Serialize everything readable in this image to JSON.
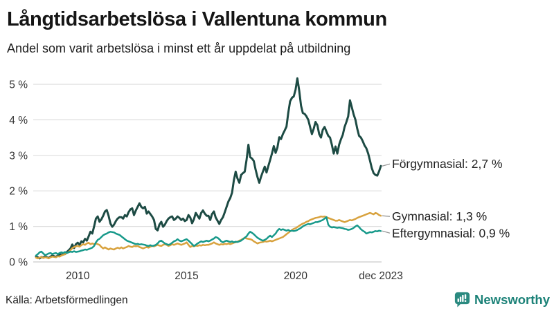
{
  "header": {
    "title": "Långtidsarbetslösa i Vallentuna kommun",
    "subtitle": "Andel som varit arbetslösa i minst ett år uppdelat på utbildning"
  },
  "footer": {
    "source": "Källa: Arbetsförmedlingen",
    "brand": "Newsworthy"
  },
  "colors": {
    "forgymnasial": "#1d4b44",
    "gymnasial": "#d8a23e",
    "eftergymnasial": "#17998a",
    "gridline": "#dddddd",
    "baseline": "#c9c9c9",
    "axis_text": "#333333",
    "label_text": "#222222",
    "leader": "#999999",
    "brand_teal": "#1c8278"
  },
  "chart_data": {
    "type": "line",
    "title": "Långtidsarbetslösa i Vallentuna kommun",
    "subtitle": "Andel som varit arbetslösa i minst ett år uppdelat på utbildning",
    "x_start": "2008-02",
    "x_end": "2023-12",
    "frequency": "monthly",
    "ylim": [
      0,
      5.4
    ],
    "grid": "horizontal",
    "legend_position": "right-end-labels",
    "yticks": [
      {
        "value": 5,
        "label": "5 %"
      },
      {
        "value": 4,
        "label": "4 %"
      },
      {
        "value": 3,
        "label": "3 %"
      },
      {
        "value": 2,
        "label": "2 %"
      },
      {
        "value": 1,
        "label": "1 %"
      },
      {
        "value": 0,
        "label": "0 %"
      }
    ],
    "xticks": [
      {
        "index": 23,
        "label": "2010"
      },
      {
        "index": 83,
        "label": "2015"
      },
      {
        "index": 143,
        "label": "2020"
      },
      {
        "index": 190,
        "label": "dec 2023"
      }
    ],
    "series": [
      {
        "name": "Förgymnasial",
        "slug": "forgymnasial",
        "end_label": "Förgymnasial: 2,7 %",
        "end_value_text": "2,7 %",
        "color": "#1d4b44",
        "stroke_width": 3,
        "values": [
          0.15,
          0.13,
          0.1,
          0.14,
          0.12,
          0.16,
          0.13,
          0.11,
          0.15,
          0.18,
          0.16,
          0.14,
          0.18,
          0.22,
          0.19,
          0.25,
          0.22,
          0.28,
          0.33,
          0.38,
          0.49,
          0.39,
          0.5,
          0.54,
          0.48,
          0.58,
          0.55,
          0.65,
          0.6,
          0.72,
          0.85,
          0.8,
          1.0,
          1.22,
          1.28,
          1.13,
          1.2,
          1.3,
          1.42,
          1.46,
          1.3,
          1.08,
          0.99,
          1.05,
          1.15,
          1.22,
          1.26,
          1.26,
          1.22,
          1.32,
          1.28,
          1.4,
          1.48,
          1.51,
          1.32,
          1.45,
          1.55,
          1.65,
          1.55,
          1.51,
          1.55,
          1.36,
          1.42,
          1.35,
          1.28,
          1.18,
          0.93,
          0.89,
          1.05,
          1.13,
          0.99,
          1.05,
          1.15,
          1.22,
          1.26,
          1.28,
          1.18,
          1.22,
          1.28,
          1.24,
          1.18,
          1.22,
          1.15,
          1.18,
          1.32,
          1.25,
          1.09,
          1.2,
          1.38,
          1.3,
          1.22,
          1.38,
          1.45,
          1.36,
          1.3,
          1.3,
          1.18,
          1.35,
          1.42,
          1.25,
          1.16,
          1.07,
          1.18,
          1.26,
          1.4,
          1.55,
          1.7,
          1.8,
          1.95,
          2.3,
          2.54,
          2.35,
          2.23,
          2.45,
          2.5,
          2.54,
          2.87,
          3.3,
          2.95,
          2.91,
          2.84,
          2.6,
          2.39,
          2.23,
          2.4,
          2.54,
          2.68,
          2.52,
          2.7,
          2.87,
          3.05,
          3.26,
          3.07,
          3.22,
          3.51,
          3.46,
          3.6,
          3.7,
          3.81,
          4.2,
          4.52,
          4.62,
          4.66,
          4.85,
          5.17,
          4.82,
          4.4,
          4.19,
          4.17,
          4.1,
          4.0,
          3.8,
          3.6,
          3.75,
          3.94,
          3.85,
          3.6,
          3.5,
          3.72,
          3.8,
          3.67,
          3.55,
          3.5,
          3.3,
          3.05,
          3.25,
          3.05,
          3.3,
          3.45,
          3.58,
          3.8,
          3.94,
          4.1,
          4.55,
          4.35,
          4.15,
          4.0,
          3.75,
          3.55,
          3.5,
          3.4,
          3.28,
          3.2,
          3.05,
          2.85,
          2.64,
          2.5,
          2.45,
          2.43,
          2.55,
          2.7
        ]
      },
      {
        "name": "Gymnasial",
        "slug": "gymnasial",
        "end_label": "Gymnasial: 1,3 %",
        "end_value_text": "1,3 %",
        "color": "#d8a23e",
        "stroke_width": 2.5,
        "values": [
          0.12,
          0.1,
          0.12,
          0.14,
          0.11,
          0.13,
          0.12,
          0.1,
          0.13,
          0.15,
          0.14,
          0.13,
          0.16,
          0.15,
          0.18,
          0.2,
          0.22,
          0.25,
          0.28,
          0.33,
          0.39,
          0.42,
          0.44,
          0.45,
          0.43,
          0.47,
          0.5,
          0.48,
          0.52,
          0.54,
          0.5,
          0.52,
          0.5,
          0.52,
          0.5,
          0.48,
          0.42,
          0.38,
          0.41,
          0.38,
          0.35,
          0.38,
          0.36,
          0.35,
          0.38,
          0.4,
          0.38,
          0.41,
          0.38,
          0.4,
          0.42,
          0.45,
          0.43,
          0.42,
          0.45,
          0.44,
          0.45,
          0.42,
          0.4,
          0.38,
          0.4,
          0.42,
          0.4,
          0.43,
          0.45,
          0.44,
          0.46,
          0.48,
          0.46,
          0.45,
          0.48,
          0.5,
          0.48,
          0.45,
          0.47,
          0.5,
          0.48,
          0.5,
          0.52,
          0.5,
          0.48,
          0.5,
          0.52,
          0.55,
          0.48,
          0.42,
          0.45,
          0.44,
          0.46,
          0.45,
          0.47,
          0.46,
          0.48,
          0.47,
          0.48,
          0.48,
          0.5,
          0.52,
          0.55,
          0.52,
          0.5,
          0.48,
          0.5,
          0.49,
          0.51,
          0.5,
          0.52,
          0.5,
          0.52,
          0.54,
          0.55,
          0.57,
          0.6,
          0.62,
          0.65,
          0.68,
          0.66,
          0.65,
          0.64,
          0.62,
          0.58,
          0.55,
          0.52,
          0.54,
          0.55,
          0.56,
          0.58,
          0.57,
          0.58,
          0.6,
          0.58,
          0.6,
          0.62,
          0.64,
          0.66,
          0.68,
          0.7,
          0.74,
          0.78,
          0.82,
          0.86,
          0.9,
          0.93,
          0.95,
          0.98,
          1.02,
          1.05,
          1.08,
          1.1,
          1.13,
          1.15,
          1.18,
          1.2,
          1.22,
          1.24,
          1.25,
          1.26,
          1.28,
          1.27,
          1.28,
          1.26,
          1.24,
          1.22,
          1.2,
          1.18,
          1.16,
          1.16,
          1.18,
          1.16,
          1.14,
          1.12,
          1.14,
          1.16,
          1.18,
          1.17,
          1.19,
          1.21,
          1.24,
          1.26,
          1.28,
          1.3,
          1.32,
          1.34,
          1.36,
          1.38,
          1.36,
          1.34,
          1.38,
          1.36,
          1.32,
          1.3
        ]
      },
      {
        "name": "Eftergymnasial",
        "slug": "eftergymnasial",
        "end_label": "Eftergymnasial: 0,9 %",
        "end_value_text": "0,9 %",
        "color": "#17998a",
        "stroke_width": 2.5,
        "values": [
          0.18,
          0.22,
          0.27,
          0.29,
          0.24,
          0.19,
          0.21,
          0.24,
          0.25,
          0.22,
          0.24,
          0.25,
          0.22,
          0.25,
          0.27,
          0.25,
          0.28,
          0.25,
          0.27,
          0.29,
          0.28,
          0.3,
          0.28,
          0.29,
          0.3,
          0.32,
          0.33,
          0.35,
          0.34,
          0.36,
          0.38,
          0.4,
          0.45,
          0.55,
          0.62,
          0.65,
          0.7,
          0.75,
          0.78,
          0.8,
          0.83,
          0.85,
          0.84,
          0.83,
          0.8,
          0.78,
          0.76,
          0.72,
          0.68,
          0.64,
          0.6,
          0.58,
          0.56,
          0.54,
          0.52,
          0.5,
          0.51,
          0.49,
          0.5,
          0.49,
          0.48,
          0.46,
          0.45,
          0.47,
          0.45,
          0.46,
          0.48,
          0.52,
          0.58,
          0.6,
          0.56,
          0.52,
          0.5,
          0.48,
          0.5,
          0.54,
          0.58,
          0.6,
          0.64,
          0.6,
          0.58,
          0.6,
          0.62,
          0.64,
          0.6,
          0.55,
          0.5,
          0.45,
          0.48,
          0.52,
          0.55,
          0.58,
          0.56,
          0.58,
          0.6,
          0.58,
          0.6,
          0.63,
          0.66,
          0.7,
          0.68,
          0.64,
          0.58,
          0.55,
          0.58,
          0.6,
          0.58,
          0.56,
          0.58,
          0.55,
          0.57,
          0.56,
          0.58,
          0.6,
          0.64,
          0.68,
          0.72,
          0.8,
          0.85,
          0.82,
          0.78,
          0.73,
          0.68,
          0.65,
          0.62,
          0.6,
          0.62,
          0.65,
          0.7,
          0.74,
          0.7,
          0.75,
          0.8,
          0.88,
          0.93,
          0.9,
          0.92,
          0.9,
          0.88,
          0.9,
          0.87,
          0.88,
          0.87,
          0.88,
          0.9,
          0.93,
          0.96,
          1.0,
          1.03,
          1.05,
          1.07,
          1.06,
          1.08,
          1.1,
          1.12,
          1.12,
          1.14,
          1.16,
          1.18,
          1.22,
          1.26,
          1.05,
          0.99,
          0.97,
          0.98,
          0.97,
          0.96,
          0.97,
          0.96,
          0.95,
          0.93,
          0.92,
          0.9,
          0.91,
          0.93,
          0.96,
          1.0,
          1.03,
          0.98,
          0.92,
          0.88,
          0.85,
          0.8,
          0.82,
          0.84,
          0.83,
          0.85,
          0.87,
          0.86,
          0.88,
          0.87
        ]
      }
    ]
  }
}
